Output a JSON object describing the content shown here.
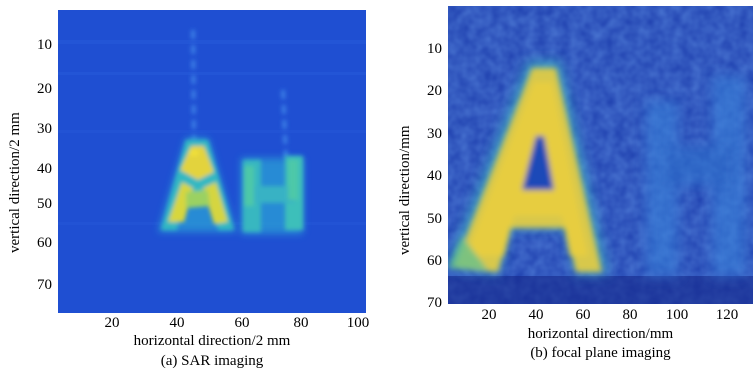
{
  "panel_a": {
    "ylabel": "vertical direction/2 mm",
    "xlabel": "horizontal direction/2 mm",
    "caption": "(a) SAR imaging",
    "yticks": [
      "10",
      "20",
      "30",
      "40",
      "50",
      "60",
      "70"
    ],
    "xticks": [
      "20",
      "40",
      "60",
      "80",
      "100"
    ],
    "xlim": [
      0,
      105
    ],
    "ylim": [
      0,
      76
    ],
    "colors": {
      "background": "#1f4fd2",
      "mid": "#2aa8c8",
      "bright": "#e7d33a"
    }
  },
  "panel_b": {
    "ylabel": "vertical direction/mm",
    "xlabel": "horizontal direction/mm",
    "caption": "(b) focal plane imaging",
    "yticks": [
      "10",
      "20",
      "30",
      "40",
      "50",
      "60",
      "70"
    ],
    "xticks": [
      "20",
      "40",
      "60",
      "80",
      "100",
      "120"
    ],
    "xlim": [
      0,
      130
    ],
    "ylim": [
      0,
      70
    ],
    "colors": {
      "background": "#1d3fae",
      "mid": "#2b7fd0",
      "bright": "#e4c744"
    }
  }
}
